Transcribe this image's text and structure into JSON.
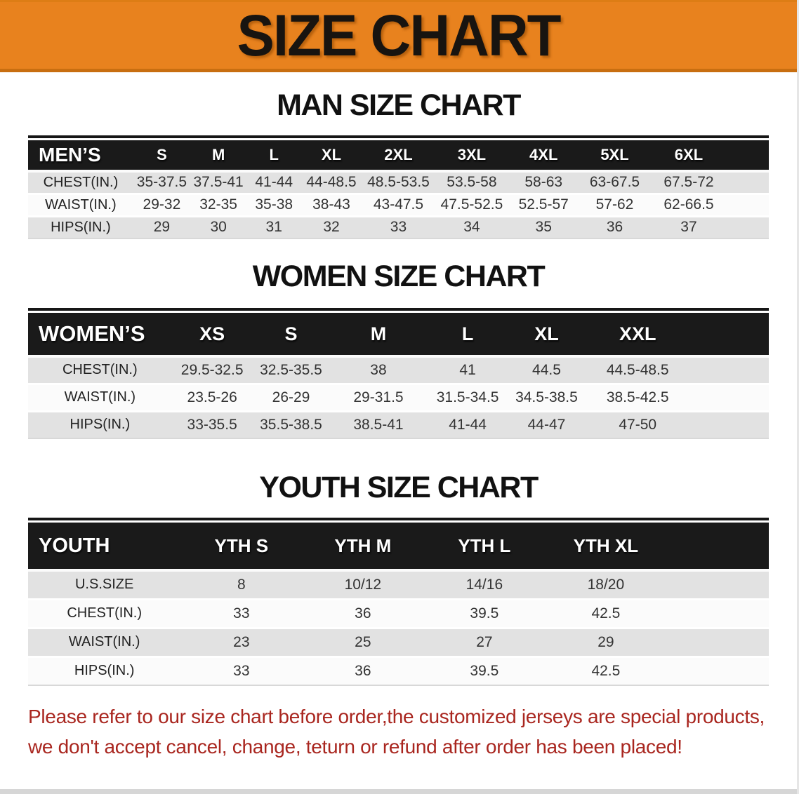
{
  "banner": {
    "title": "SIZE CHART"
  },
  "colors": {
    "banner_bg": "#E8821E",
    "banner_text": "#181410",
    "table_header_bg": "#1A1A1A",
    "row_gray": "#E2E2E2",
    "row_white": "#FBFBFB",
    "footer_text": "#A9261F"
  },
  "sections": [
    {
      "id": "men",
      "title": "MAN SIZE CHART",
      "corner_label": "MEN’S",
      "columns": [
        "S",
        "M",
        "L",
        "XL",
        "2XL",
        "3XL",
        "4XL",
        "5XL",
        "6XL"
      ],
      "rows": [
        {
          "label": "CHEST(IN.)",
          "values": [
            "35-37.5",
            "37.5-41",
            "41-44",
            "44-48.5",
            "48.5-53.5",
            "53.5-58",
            "58-63",
            "63-67.5",
            "67.5-72"
          ]
        },
        {
          "label": "WAIST(IN.)",
          "values": [
            "29-32",
            "32-35",
            "35-38",
            "38-43",
            "43-47.5",
            "47.5-52.5",
            "52.5-57",
            "57-62",
            "62-66.5"
          ]
        },
        {
          "label": "HIPS(IN.)",
          "values": [
            "29",
            "30",
            "31",
            "32",
            "33",
            "34",
            "35",
            "36",
            "37"
          ]
        }
      ]
    },
    {
      "id": "women",
      "title": "WOMEN SIZE CHART",
      "corner_label": "WOMEN’S",
      "columns": [
        "XS",
        "S",
        "M",
        "L",
        "XL",
        "XXL"
      ],
      "rows": [
        {
          "label": "CHEST(IN.)",
          "values": [
            "29.5-32.5",
            "32.5-35.5",
            "38",
            "41",
            "44.5",
            "44.5-48.5"
          ]
        },
        {
          "label": "WAIST(IN.)",
          "values": [
            "23.5-26",
            "26-29",
            "29-31.5",
            "31.5-34.5",
            "34.5-38.5",
            "38.5-42.5"
          ]
        },
        {
          "label": "HIPS(IN.)",
          "values": [
            "33-35.5",
            "35.5-38.5",
            "38.5-41",
            "41-44",
            "44-47",
            "47-50"
          ]
        }
      ]
    },
    {
      "id": "youth",
      "title": "YOUTH SIZE CHART",
      "corner_label": "YOUTH",
      "columns": [
        "YTH S",
        "YTH M",
        "YTH L",
        "YTH XL"
      ],
      "rows": [
        {
          "label": "U.S.SIZE",
          "values": [
            "8",
            "10/12",
            "14/16",
            "18/20"
          ]
        },
        {
          "label": "CHEST(IN.)",
          "values": [
            "33",
            "36",
            "39.5",
            "42.5"
          ]
        },
        {
          "label": "WAIST(IN.)",
          "values": [
            "23",
            "25",
            "27",
            "29"
          ]
        },
        {
          "label": "HIPS(IN.)",
          "values": [
            "33",
            "36",
            "39.5",
            "42.5"
          ]
        }
      ]
    }
  ],
  "footer": {
    "line1": "Please refer to our size chart before order,the customized jerseys are special products,",
    "line2": "we don't accept cancel, change, teturn or refund after order has been placed!"
  }
}
